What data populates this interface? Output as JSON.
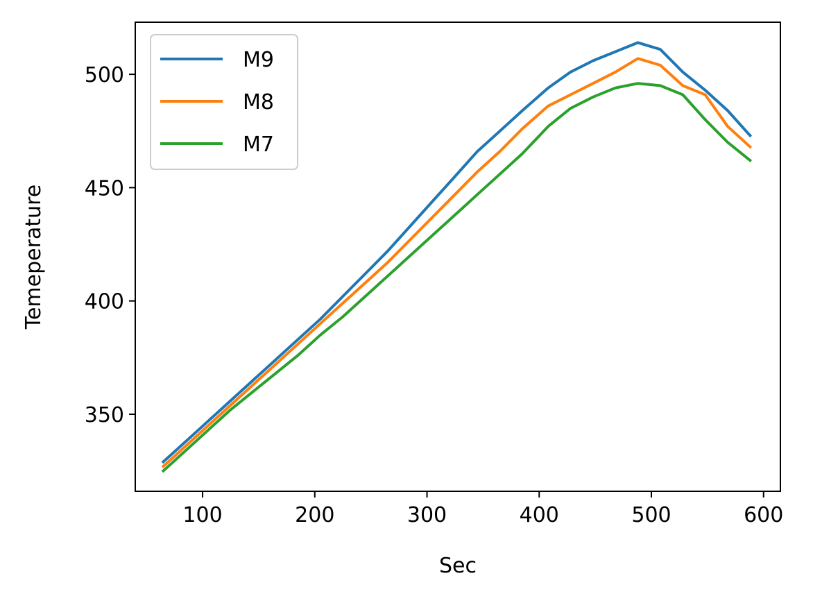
{
  "chart_data": {
    "type": "line",
    "title": "",
    "xlabel": "Sec",
    "ylabel": "Temeperature",
    "xlim": [
      40,
      615
    ],
    "ylim": [
      316,
      523
    ],
    "xticks": [
      100,
      200,
      300,
      400,
      500,
      600
    ],
    "yticks": [
      350,
      400,
      450,
      500
    ],
    "grid": false,
    "legend_position": "upper-left",
    "x": [
      65,
      85,
      105,
      125,
      145,
      165,
      185,
      205,
      225,
      245,
      265,
      285,
      305,
      325,
      345,
      365,
      385,
      408,
      428,
      448,
      468,
      488,
      508,
      528,
      548,
      568,
      588
    ],
    "series": [
      {
        "name": "M9",
        "color": "#1f77b4",
        "values": [
          329,
          338,
          347,
          356,
          365,
          374,
          383,
          392,
          402,
          412,
          422,
          433,
          444,
          455,
          466,
          475,
          484,
          494,
          501,
          506,
          510,
          514,
          511,
          501,
          493,
          484,
          473
        ]
      },
      {
        "name": "M8",
        "color": "#ff7f0e",
        "values": [
          327,
          336,
          345,
          354,
          363,
          372,
          381,
          390,
          399,
          408,
          417,
          427,
          437,
          447,
          457,
          466,
          476,
          486,
          491,
          496,
          501,
          507,
          504,
          495,
          491,
          477,
          468
        ]
      },
      {
        "name": "M7",
        "color": "#2ca02c",
        "values": [
          325,
          334,
          343,
          352,
          360,
          368,
          376,
          385,
          393,
          402,
          411,
          420,
          429,
          438,
          447,
          456,
          465,
          477,
          485,
          490,
          494,
          496,
          495,
          491,
          480,
          470,
          462
        ]
      }
    ]
  }
}
